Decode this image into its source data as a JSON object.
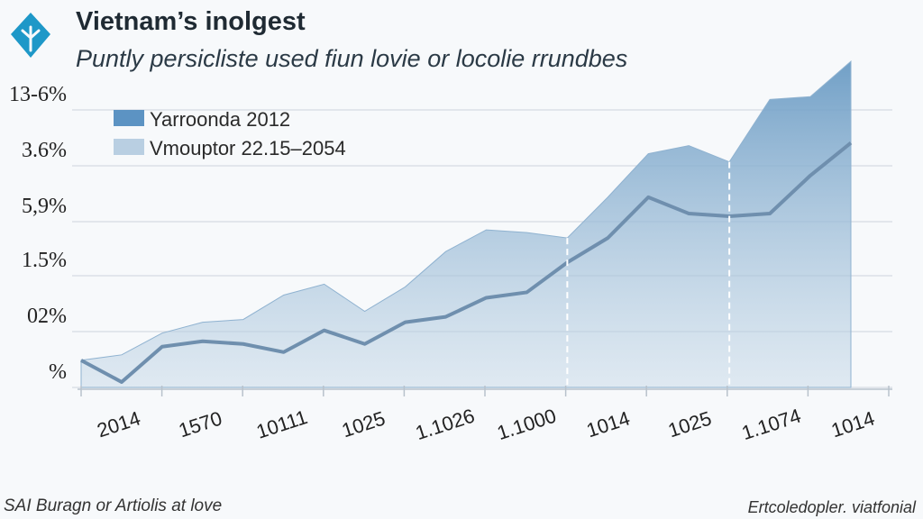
{
  "header": {
    "title": "Vietnam’s inolgest",
    "subtitle": "Puntly persicliste used fiun lovie or locolie rrundbes"
  },
  "footer": {
    "left": "SAI Buragn or Artiolis at love",
    "right": "Ertcoledopler. viatfonial"
  },
  "colors": {
    "area": "#9fbfd9",
    "area_dark": "#6a9bc4",
    "line": "#6f8fae",
    "legend_dark": "#5c93c3",
    "legend_light": "#b9cfe2",
    "logo": "#1e98c8"
  },
  "icons": {
    "logo": "diamond-leaf-icon"
  },
  "chart_data": {
    "type": "area",
    "title": "Vietnam’s inolgest",
    "subtitle": "Puntly persicliste used fiun lovie or locolie rrundbes",
    "y_tick_labels": [
      "%",
      "02%",
      "1.5%",
      "5,9%",
      "3.6%",
      "13-6%"
    ],
    "x_tick_labels": [
      "2014",
      "1570",
      "10111",
      "1025",
      "1.1026",
      "1.1000",
      "1014",
      "1025",
      "1.1074",
      "1014"
    ],
    "legend": [
      "Yarroonda 2012",
      "Vmouptor 22.15–2054"
    ],
    "legend_position": "top-left",
    "grid": true,
    "x": [
      0,
      0.5,
      1,
      1.5,
      2,
      2.5,
      3,
      3.5,
      4,
      4.5,
      5,
      5.5,
      6,
      6.5,
      7,
      7.5,
      8,
      8.5,
      9,
      9.5
    ],
    "series": [
      {
        "name": "Yarroonda 2012",
        "values": [
          0.5,
          0.6,
          1.0,
          1.2,
          1.25,
          1.7,
          1.9,
          1.4,
          1.85,
          2.5,
          2.9,
          2.85,
          2.75,
          3.5,
          4.3,
          4.45,
          4.15,
          5.3,
          5.35,
          6.0
        ]
      },
      {
        "name": "Vmouptor 22.15–2054",
        "values": [
          0.5,
          0.1,
          0.75,
          0.85,
          0.8,
          0.65,
          1.05,
          0.8,
          1.2,
          1.3,
          1.65,
          1.75,
          2.3,
          2.75,
          3.5,
          3.2,
          3.15,
          3.2,
          3.9,
          4.5
        ]
      }
    ],
    "dashed_x": [
      6,
      8
    ],
    "ylim": [
      0,
      6.3
    ]
  }
}
